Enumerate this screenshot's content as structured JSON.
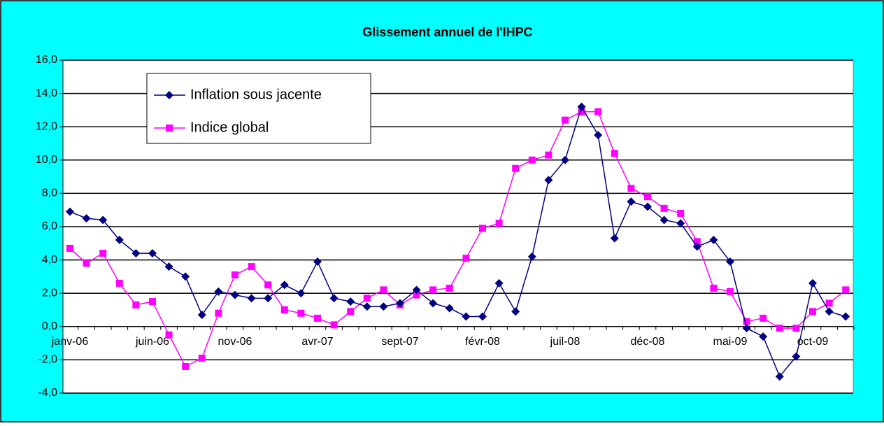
{
  "chart_data": {
    "type": "line",
    "title": "Glissement annuel de l'IHPC",
    "categories": [
      "janv-06",
      null,
      null,
      null,
      null,
      "juin-06",
      null,
      null,
      null,
      null,
      "nov-06",
      null,
      null,
      null,
      null,
      "avr-07",
      null,
      null,
      null,
      null,
      "sept-07",
      null,
      null,
      null,
      null,
      "févr-08",
      null,
      null,
      null,
      null,
      "juil-08",
      null,
      null,
      null,
      null,
      "déc-08",
      null,
      null,
      null,
      null,
      "mai-09",
      null,
      null,
      null,
      null,
      "oct-09",
      null,
      null
    ],
    "series": [
      {
        "name": "Inflation sous jacente",
        "color": "#000080",
        "marker": "diamond",
        "values": [
          6.9,
          6.5,
          6.4,
          5.2,
          4.4,
          4.4,
          3.6,
          3.0,
          0.7,
          2.1,
          1.9,
          1.7,
          1.7,
          2.5,
          2.0,
          3.9,
          1.7,
          1.5,
          1.2,
          1.2,
          1.4,
          2.2,
          1.4,
          1.1,
          0.6,
          0.6,
          2.6,
          0.9,
          4.2,
          8.8,
          10.0,
          13.2,
          11.5,
          5.3,
          7.5,
          7.2,
          6.4,
          6.2,
          4.8,
          5.2,
          3.9,
          -0.1,
          -0.6,
          -3.0,
          -1.8,
          2.6,
          0.9,
          0.6
        ]
      },
      {
        "name": "Indice global",
        "color": "#ff00ff",
        "marker": "square",
        "values": [
          4.7,
          3.8,
          4.4,
          2.6,
          1.3,
          1.5,
          -0.5,
          -2.4,
          -1.9,
          0.8,
          3.1,
          3.6,
          2.5,
          1.0,
          0.8,
          0.5,
          0.1,
          0.9,
          1.7,
          2.2,
          1.3,
          1.9,
          2.2,
          2.3,
          4.1,
          5.9,
          6.2,
          9.5,
          10.0,
          10.3,
          12.4,
          12.9,
          12.9,
          10.4,
          8.3,
          7.8,
          7.1,
          6.8,
          5.1,
          2.3,
          2.1,
          0.3,
          0.5,
          -0.1,
          -0.1,
          0.9,
          1.4,
          2.2
        ]
      }
    ],
    "ylim": [
      -4,
      16
    ],
    "yticks": [
      {
        "value": -4,
        "label": "-4,0"
      },
      {
        "value": -2,
        "label": "-2,0"
      },
      {
        "value": 0,
        "label": "0,0"
      },
      {
        "value": 2,
        "label": "2,0"
      },
      {
        "value": 4,
        "label": "4,0"
      },
      {
        "value": 6,
        "label": "6,0"
      },
      {
        "value": 8,
        "label": "8,0"
      },
      {
        "value": 10,
        "label": "10,0"
      },
      {
        "value": 12,
        "label": "12,0"
      },
      {
        "value": 14,
        "label": "14,0"
      },
      {
        "value": 16,
        "label": "16,0"
      }
    ],
    "grid": true,
    "legend": "upper left"
  }
}
